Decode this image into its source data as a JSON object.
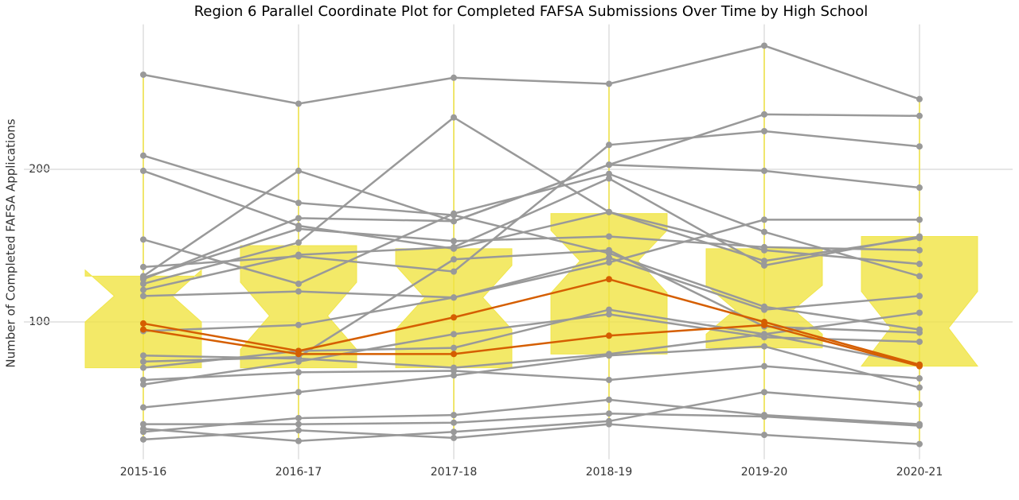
{
  "chart_data": {
    "type": "parallel",
    "title": "Region 6 Parallel Coordinate Plot for Completed FAFSA Submissions Over Time by High School",
    "y_label": "Number of Completed FAFSA Applications",
    "categories": [
      "2015-16",
      "2016-17",
      "2017-18",
      "2018-19",
      "2019-20",
      "2020-21"
    ],
    "ylim": [
      10,
      295
    ],
    "yticks": [
      100,
      200
    ],
    "grid": true,
    "box_color": "#f0e442",
    "boxes": [
      {
        "q1": 70,
        "q3": 130,
        "median": 117,
        "notch_low": 100,
        "notch_high": 134,
        "whisker_low": 23,
        "whisker_high": 262
      },
      {
        "q1": 70,
        "q3": 150,
        "median": 104,
        "notch_low": 82,
        "notch_high": 126,
        "whisker_low": 22,
        "whisker_high": 243
      },
      {
        "q1": 70,
        "q3": 148,
        "median": 116,
        "notch_low": 95,
        "notch_high": 137,
        "whisker_low": 24,
        "whisker_high": 260
      },
      {
        "q1": 79,
        "q3": 171,
        "median": 140,
        "notch_low": 119,
        "notch_high": 160,
        "whisker_low": 33,
        "whisker_high": 256
      },
      {
        "q1": 83,
        "q3": 148,
        "median": 108,
        "notch_low": 92,
        "notch_high": 124,
        "whisker_low": 26,
        "whisker_high": 281
      },
      {
        "q1": 71,
        "q3": 156,
        "median": 96,
        "notch_low": 71,
        "notch_high": 120,
        "whisker_low": 20,
        "whisker_high": 246
      }
    ],
    "series": [
      {
        "color": "#999999",
        "values": [
          262,
          243,
          260,
          256,
          281,
          246
        ]
      },
      {
        "color": "#999999",
        "values": [
          209,
          178,
          170,
          145,
          110,
          95
        ]
      },
      {
        "color": "#999999",
        "values": [
          199,
          163,
          148,
          172,
          140,
          155
        ]
      },
      {
        "color": "#999999",
        "values": [
          154,
          125,
          171,
          197,
          159,
          130
        ]
      },
      {
        "color": "#999999",
        "values": [
          130,
          199,
          166,
          203,
          199,
          188
        ]
      },
      {
        "color": "#999999",
        "values": [
          136,
          143,
          133,
          216,
          225,
          215
        ]
      },
      {
        "color": "#999999",
        "values": [
          128,
          168,
          166,
          203,
          236,
          235
        ]
      },
      {
        "color": "#999999",
        "values": [
          125,
          152,
          234,
          172,
          147,
          138
        ]
      },
      {
        "color": "#999999",
        "values": [
          121,
          144,
          149,
          194,
          137,
          156
        ]
      },
      {
        "color": "#999999",
        "values": [
          117,
          120,
          116,
          139,
          167,
          167
        ]
      },
      {
        "color": "#999999",
        "values": [
          129,
          161,
          153,
          156,
          149,
          147
        ]
      },
      {
        "color": "#999999",
        "values": [
          94,
          98,
          116,
          142,
          108,
          117
        ]
      },
      {
        "color": "#999999",
        "values": [
          78,
          76,
          70,
          79,
          92,
          106
        ]
      },
      {
        "color": "#999999",
        "values": [
          74,
          77,
          141,
          147,
          97,
          93
        ]
      },
      {
        "color": "#999999",
        "values": [
          70,
          81,
          83,
          108,
          92,
          72
        ]
      },
      {
        "color": "#999999",
        "values": [
          62,
          67,
          68,
          62,
          71,
          63
        ]
      },
      {
        "color": "#999999",
        "values": [
          59,
          74,
          92,
          105,
          90,
          87
        ]
      },
      {
        "color": "#999999",
        "values": [
          44,
          54,
          65,
          78,
          84,
          57
        ]
      },
      {
        "color": "#999999",
        "values": [
          33,
          33,
          34,
          40,
          38,
          32
        ]
      },
      {
        "color": "#999999",
        "values": [
          28,
          37,
          39,
          49,
          39,
          33
        ]
      },
      {
        "color": "#999999",
        "values": [
          23,
          29,
          24,
          33,
          26,
          20
        ]
      },
      {
        "color": "#999999",
        "values": [
          30,
          22,
          28,
          35,
          54,
          46
        ]
      },
      {
        "color": "#d55e00",
        "values": [
          99,
          81,
          103,
          128,
          100,
          72
        ]
      },
      {
        "color": "#d55e00",
        "values": [
          95,
          79,
          79,
          91,
          98,
          71
        ]
      }
    ]
  }
}
